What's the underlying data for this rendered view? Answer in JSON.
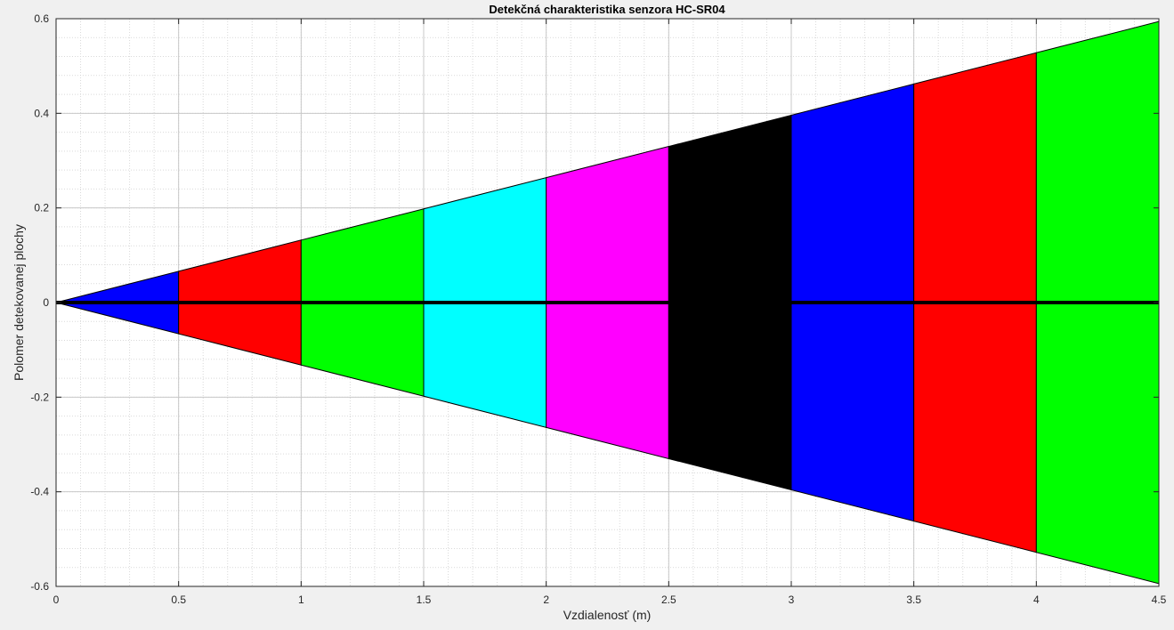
{
  "chart_data": {
    "type": "area",
    "title": "Detekčná charakteristika senzora HC-SR04",
    "xlabel": "Vzdialenosť (m)",
    "ylabel": "Polomer detekovanej plochy",
    "xlim": [
      0,
      4.5
    ],
    "ylim": [
      -0.6,
      0.6
    ],
    "grid": true,
    "minor_grid": true,
    "x_ticks": [
      0,
      0.5,
      1,
      1.5,
      2,
      2.5,
      3,
      3.5,
      4,
      4.5
    ],
    "x_tick_labels": [
      "0",
      "0.5",
      "1",
      "1.5",
      "2",
      "2.5",
      "3",
      "3.5",
      "4",
      "4.5"
    ],
    "y_ticks": [
      -0.6,
      -0.4,
      -0.2,
      0,
      0.2,
      0.4,
      0.6
    ],
    "y_tick_labels": [
      "-0.6",
      "-0.4",
      "-0.2",
      "0",
      "0.2",
      "0.4",
      "0.6"
    ],
    "segments": [
      {
        "x_start": 0,
        "x_end": 0.5,
        "r_start": 0,
        "r_end": 0.066,
        "color": "#0000ff"
      },
      {
        "x_start": 0.5,
        "x_end": 1,
        "r_start": 0.066,
        "r_end": 0.132,
        "color": "#ff0000"
      },
      {
        "x_start": 1,
        "x_end": 1.5,
        "r_start": 0.132,
        "r_end": 0.198,
        "color": "#00ff00"
      },
      {
        "x_start": 1.5,
        "x_end": 2,
        "r_start": 0.198,
        "r_end": 0.264,
        "color": "#00ffff"
      },
      {
        "x_start": 2,
        "x_end": 2.5,
        "r_start": 0.264,
        "r_end": 0.33,
        "color": "#ff00ff"
      },
      {
        "x_start": 2.5,
        "x_end": 3,
        "r_start": 0.33,
        "r_end": 0.396,
        "color": "#000000"
      },
      {
        "x_start": 3,
        "x_end": 3.5,
        "r_start": 0.396,
        "r_end": 0.462,
        "color": "#0000ff"
      },
      {
        "x_start": 3.5,
        "x_end": 4,
        "r_start": 0.462,
        "r_end": 0.528,
        "color": "#ff0000"
      },
      {
        "x_start": 4,
        "x_end": 4.5,
        "r_start": 0.528,
        "r_end": 0.594,
        "color": "#00ff00"
      }
    ],
    "center_line": {
      "y": 0,
      "x_start": 0,
      "x_end": 4.5,
      "color": "#000000"
    }
  }
}
